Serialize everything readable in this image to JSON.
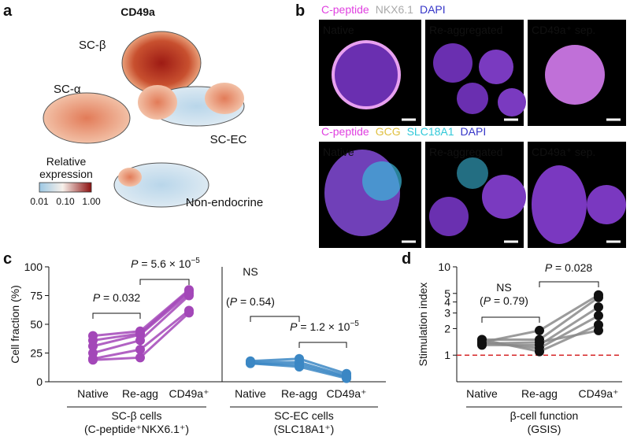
{
  "panel_a": {
    "letter": "a",
    "title": "CD49a",
    "labels": [
      "SC-β",
      "SC-α",
      "SC-EC",
      "Non-endocrine"
    ],
    "colorbar_title": [
      "Relative",
      "expression"
    ],
    "colorbar_ticks": [
      "0.01",
      "0.10",
      "1.00"
    ]
  },
  "panel_b": {
    "letter": "b",
    "rows": [
      {
        "stains": [
          {
            "text": "C-peptide",
            "color": "#e040e0"
          },
          {
            "text": "NKX6.1",
            "color": "#aaaaaa"
          },
          {
            "text": "DAPI",
            "color": "#3535c8"
          }
        ],
        "tiles": [
          "Native",
          "Re-aggregated",
          "CD49a⁺ sep."
        ]
      },
      {
        "stains": [
          {
            "text": "C-peptide",
            "color": "#e040e0"
          },
          {
            "text": "GCG",
            "color": "#e0c040"
          },
          {
            "text": "SLC18A1",
            "color": "#30c8d8"
          },
          {
            "text": "DAPI",
            "color": "#3535c8"
          }
        ],
        "tiles": [
          "Native",
          "Re-aggregated",
          "CD49a⁺ sep."
        ]
      }
    ]
  },
  "panel_c": {
    "letter": "c"
  },
  "panel_d": {
    "letter": "d"
  },
  "chart_data": [
    {
      "type": "line",
      "ylabel": "Cell fraction (%)",
      "categories": [
        "Native",
        "Re-agg",
        "CD49a⁺"
      ],
      "xlabel": "SC-β cells",
      "xlabel2": "(C-peptide⁺NKX6.1⁺)",
      "color": "#a347b8",
      "ylim": [
        0,
        100
      ],
      "yticks": [
        0,
        25,
        50,
        75,
        100
      ],
      "series": [
        {
          "values": [
            40,
            44,
            80
          ]
        },
        {
          "values": [
            36,
            42,
            79
          ]
        },
        {
          "values": [
            31,
            41,
            77
          ]
        },
        {
          "values": [
            25,
            36,
            75
          ]
        },
        {
          "values": [
            20,
            28,
            62
          ]
        },
        {
          "values": [
            19,
            21,
            60
          ]
        }
      ],
      "annotations": [
        {
          "parts": [
            {
              "text": "P",
              "style": "italic"
            },
            {
              "text": " = 0.032"
            }
          ]
        },
        {
          "parts": [
            {
              "text": "P",
              "style": "italic"
            },
            {
              "text": " = 5.6 × 10"
            },
            {
              "text": "−5",
              "style": "sup"
            }
          ]
        }
      ]
    },
    {
      "type": "line",
      "categories": [
        "Native",
        "Re-agg",
        "CD49a⁺"
      ],
      "xlabel": "SC-EC cells",
      "xlabel2": "(SLC18A1⁺)",
      "color": "#3b87c4",
      "ylim": [
        0,
        100
      ],
      "series": [
        {
          "values": [
            18,
            20,
            7
          ]
        },
        {
          "values": [
            17,
            17,
            5
          ]
        },
        {
          "values": [
            16,
            15,
            4
          ]
        },
        {
          "values": [
            16,
            13,
            3
          ]
        }
      ],
      "annotations": [
        {
          "parts": [
            {
              "text": "NS"
            }
          ]
        },
        {
          "parts": [
            {
              "text": "("
            },
            {
              "text": "P",
              "style": "italic"
            },
            {
              "text": " = 0.54)"
            }
          ]
        },
        {
          "parts": [
            {
              "text": "P",
              "style": "italic"
            },
            {
              "text": " = 1.2 × 10"
            },
            {
              "text": "−5",
              "style": "sup"
            }
          ]
        }
      ]
    },
    {
      "type": "line",
      "ylabel": "Stimulation index",
      "categories": [
        "Native",
        "Re-agg",
        "CD49a⁺"
      ],
      "xlabel": "β-cell function",
      "xlabel2": "(GSIS)",
      "color": "#8a8a8a",
      "marker_color": "#111111",
      "log": true,
      "ylim": [
        0.5,
        10
      ],
      "yticks": [
        1,
        2,
        3,
        4,
        5,
        10
      ],
      "reference_line": 1,
      "series": [
        {
          "values": [
            1.4,
            1.9,
            4.8
          ]
        },
        {
          "values": [
            1.5,
            1.5,
            4.5
          ]
        },
        {
          "values": [
            1.3,
            1.3,
            3.5
          ]
        },
        {
          "values": [
            1.4,
            1.2,
            2.8
          ]
        },
        {
          "values": [
            1.5,
            1.1,
            2.2
          ]
        },
        {
          "values": [
            1.35,
            1.4,
            1.9
          ]
        }
      ],
      "annotations": [
        {
          "parts": [
            {
              "text": "NS"
            }
          ]
        },
        {
          "parts": [
            {
              "text": "("
            },
            {
              "text": "P",
              "style": "italic"
            },
            {
              "text": " = 0.79)"
            }
          ]
        },
        {
          "parts": [
            {
              "text": "P",
              "style": "italic"
            },
            {
              "text": " = 0.028"
            }
          ]
        }
      ]
    }
  ]
}
